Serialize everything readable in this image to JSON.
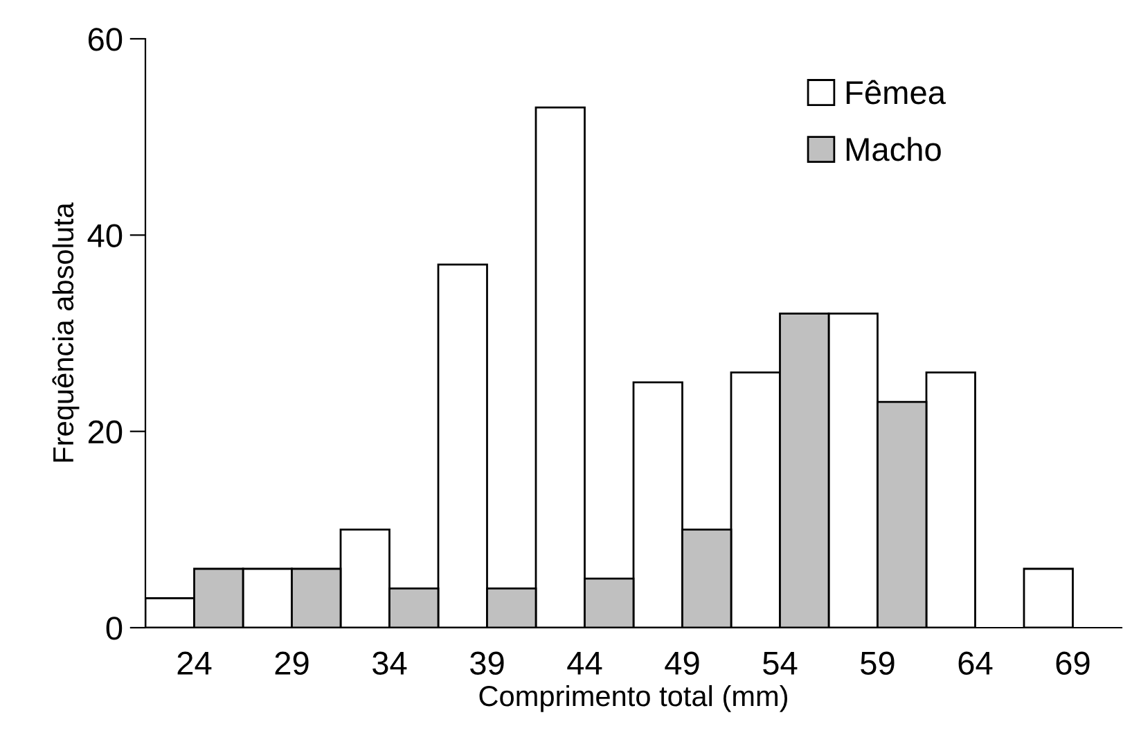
{
  "chart_data": {
    "type": "bar",
    "xlabel": "Comprimento total (mm)",
    "ylabel": "Frequência absoluta",
    "categories": [
      "24",
      "29",
      "34",
      "39",
      "44",
      "49",
      "54",
      "59",
      "64",
      "69"
    ],
    "series": [
      {
        "name": "Fêmea",
        "color": "#ffffff",
        "values": [
          3,
          6,
          10,
          37,
          53,
          25,
          26,
          32,
          26,
          6
        ]
      },
      {
        "name": "Macho",
        "color": "#c0c0c0",
        "values": [
          6,
          6,
          4,
          4,
          5,
          10,
          32,
          23,
          null,
          null
        ]
      }
    ],
    "ylim": [
      0,
      60
    ],
    "yticks": [
      0,
      20,
      40,
      60
    ],
    "grid": false,
    "legend": "top right"
  }
}
